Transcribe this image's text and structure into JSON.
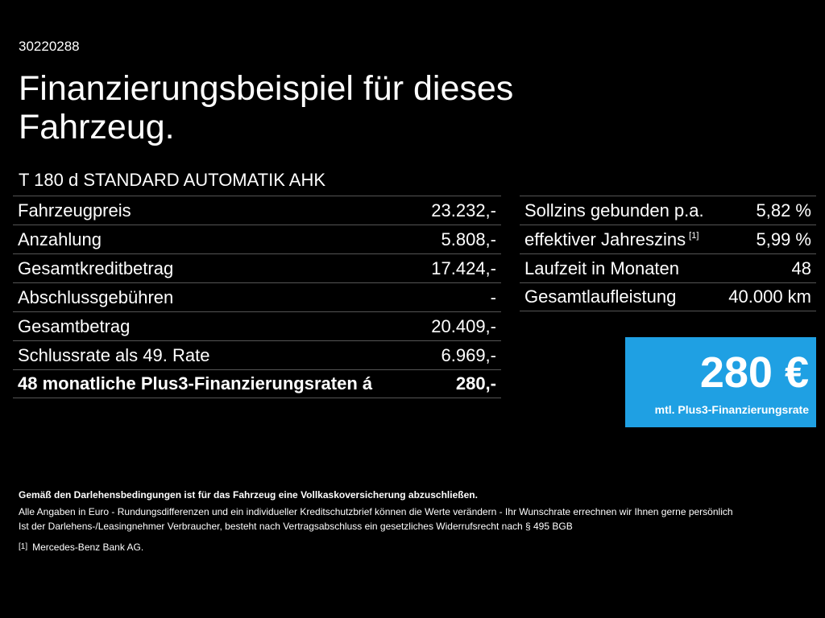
{
  "header": {
    "id": "30220288",
    "title": "Finanzierungsbeispiel für dieses Fahrzeug.",
    "model": "T 180 d STANDARD AUTOMATIK AHK"
  },
  "left_table": {
    "rows": [
      [
        "Fahrzeugpreis",
        "23.232,-"
      ],
      [
        "Anzahlung",
        "5.808,-"
      ],
      [
        "Gesamtkreditbetrag",
        "17.424,-"
      ],
      [
        "Abschlussgebühren",
        "-"
      ],
      [
        "Gesamtbetrag",
        "20.409,-"
      ],
      [
        "Schlussrate als 49. Rate",
        "6.969,-"
      ],
      [
        "48 monatliche Plus3-Finanzierungsraten á",
        "280,-"
      ]
    ]
  },
  "right_table": {
    "rows": [
      {
        "label": "Sollzins gebunden p.a.",
        "value": "5,82 %"
      },
      {
        "label": "effektiver Jahreszins",
        "note": "[1]",
        "value": "5,99 %"
      },
      {
        "label": "Laufzeit in Monaten",
        "value": "48"
      },
      {
        "label": "Gesamtlaufleistung",
        "value": "40.000 km"
      }
    ]
  },
  "rate_box": {
    "amount": "280 €",
    "caption": "mtl. Plus3-Finanzierungsrate"
  },
  "footer": {
    "notice": "Gemäß den Darlehensbedingungen ist für das Fahrzeug eine Vollkaskoversicherung abzuschließen.",
    "lines": [
      "Alle Angaben in Euro - Rundungsdifferenzen und ein individueller Kreditschutzbrief können die Werte verändern - Ihr Wunschrate errechnen wir Ihnen gerne persönlich",
      "Ist der Darlehens-/Leasingnehmer Verbraucher, besteht nach Vertragsabschluss ein gesetzliches Widerrufsrecht nach § 495 BGB"
    ],
    "footnote": {
      "marker": "[1]",
      "text": "Mercedes-Benz Bank AG."
    }
  }
}
